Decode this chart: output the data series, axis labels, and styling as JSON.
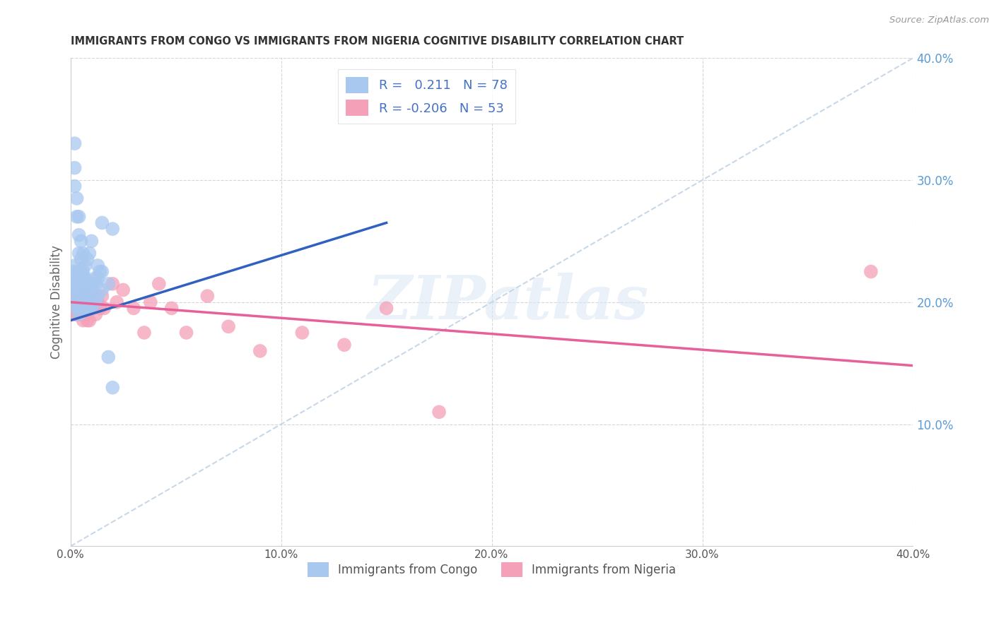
{
  "title": "IMMIGRANTS FROM CONGO VS IMMIGRANTS FROM NIGERIA COGNITIVE DISABILITY CORRELATION CHART",
  "source": "Source: ZipAtlas.com",
  "ylabel_left": "Cognitive Disability",
  "x_min": 0.0,
  "x_max": 0.4,
  "y_min": 0.0,
  "y_max": 0.4,
  "x_ticks": [
    0.0,
    0.1,
    0.2,
    0.3,
    0.4
  ],
  "x_tick_labels": [
    "0.0%",
    "10.0%",
    "20.0%",
    "30.0%",
    "40.0%"
  ],
  "y_ticks_right": [
    0.1,
    0.2,
    0.3,
    0.4
  ],
  "y_tick_labels_right": [
    "10.0%",
    "20.0%",
    "30.0%",
    "40.0%"
  ],
  "congo_R": 0.211,
  "congo_N": 78,
  "nigeria_R": -0.206,
  "nigeria_N": 53,
  "congo_color": "#a8c8f0",
  "nigeria_color": "#f4a0b8",
  "congo_line_color": "#3060c0",
  "nigeria_line_color": "#e8609a",
  "ref_line_color": "#c8d8e8",
  "watermark_text": "ZIPatlas",
  "congo_line_x0": 0.0,
  "congo_line_y0": 0.185,
  "congo_line_x1": 0.15,
  "congo_line_y1": 0.265,
  "nigeria_line_x0": 0.0,
  "nigeria_line_y0": 0.2,
  "nigeria_line_x1": 0.4,
  "nigeria_line_y1": 0.148,
  "congo_scatter_x": [
    0.002,
    0.002,
    0.002,
    0.002,
    0.003,
    0.003,
    0.003,
    0.003,
    0.003,
    0.004,
    0.004,
    0.004,
    0.004,
    0.004,
    0.004,
    0.004,
    0.004,
    0.005,
    0.005,
    0.005,
    0.005,
    0.005,
    0.005,
    0.005,
    0.006,
    0.006,
    0.006,
    0.006,
    0.006,
    0.006,
    0.007,
    0.007,
    0.007,
    0.007,
    0.007,
    0.008,
    0.008,
    0.008,
    0.008,
    0.009,
    0.009,
    0.009,
    0.01,
    0.01,
    0.01,
    0.012,
    0.012,
    0.013,
    0.013,
    0.015,
    0.015,
    0.018,
    0.02,
    0.002,
    0.002,
    0.002,
    0.003,
    0.003,
    0.004,
    0.004,
    0.004,
    0.005,
    0.005,
    0.006,
    0.006,
    0.007,
    0.008,
    0.009,
    0.01,
    0.012,
    0.013,
    0.014,
    0.015,
    0.018,
    0.02
  ],
  "congo_scatter_y": [
    0.215,
    0.22,
    0.225,
    0.23,
    0.195,
    0.2,
    0.205,
    0.21,
    0.215,
    0.19,
    0.195,
    0.2,
    0.205,
    0.21,
    0.215,
    0.22,
    0.225,
    0.195,
    0.2,
    0.205,
    0.21,
    0.215,
    0.22,
    0.225,
    0.195,
    0.2,
    0.205,
    0.21,
    0.215,
    0.22,
    0.195,
    0.2,
    0.205,
    0.21,
    0.22,
    0.195,
    0.2,
    0.205,
    0.215,
    0.195,
    0.2,
    0.21,
    0.195,
    0.205,
    0.215,
    0.2,
    0.215,
    0.205,
    0.22,
    0.21,
    0.225,
    0.215,
    0.26,
    0.33,
    0.31,
    0.295,
    0.285,
    0.27,
    0.27,
    0.255,
    0.24,
    0.25,
    0.235,
    0.24,
    0.225,
    0.23,
    0.235,
    0.24,
    0.25,
    0.22,
    0.23,
    0.225,
    0.265,
    0.155,
    0.13
  ],
  "nigeria_scatter_x": [
    0.001,
    0.001,
    0.001,
    0.002,
    0.002,
    0.002,
    0.002,
    0.003,
    0.003,
    0.003,
    0.004,
    0.004,
    0.004,
    0.004,
    0.005,
    0.005,
    0.005,
    0.006,
    0.006,
    0.006,
    0.007,
    0.007,
    0.007,
    0.008,
    0.008,
    0.009,
    0.009,
    0.01,
    0.01,
    0.011,
    0.012,
    0.013,
    0.014,
    0.015,
    0.016,
    0.02,
    0.022,
    0.025,
    0.03,
    0.035,
    0.038,
    0.042,
    0.048,
    0.055,
    0.065,
    0.075,
    0.09,
    0.11,
    0.13,
    0.15,
    0.175,
    0.38
  ],
  "nigeria_scatter_y": [
    0.195,
    0.2,
    0.205,
    0.19,
    0.195,
    0.2,
    0.205,
    0.19,
    0.195,
    0.2,
    0.19,
    0.195,
    0.2,
    0.205,
    0.19,
    0.195,
    0.205,
    0.185,
    0.195,
    0.205,
    0.19,
    0.2,
    0.21,
    0.185,
    0.2,
    0.185,
    0.2,
    0.195,
    0.21,
    0.2,
    0.19,
    0.2,
    0.195,
    0.205,
    0.195,
    0.215,
    0.2,
    0.21,
    0.195,
    0.175,
    0.2,
    0.215,
    0.195,
    0.175,
    0.205,
    0.18,
    0.16,
    0.175,
    0.165,
    0.195,
    0.11,
    0.225
  ]
}
